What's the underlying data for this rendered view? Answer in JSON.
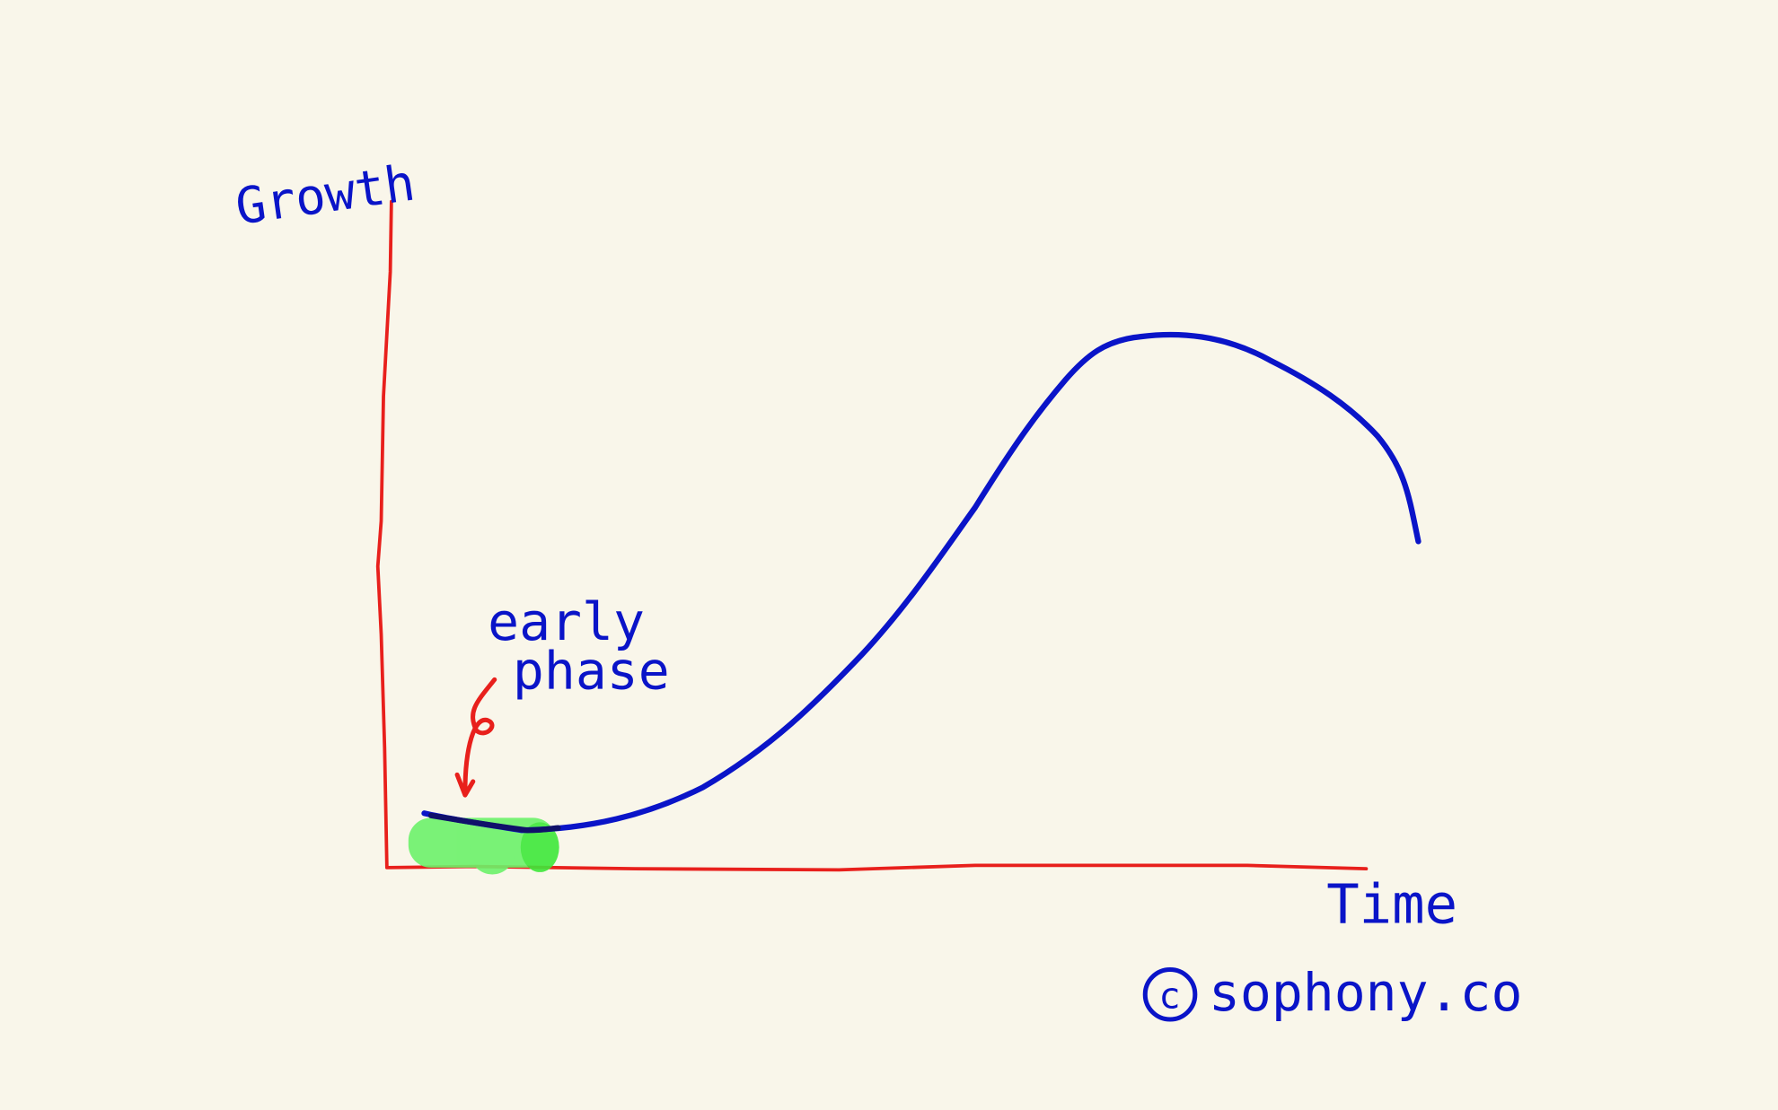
{
  "colors": {
    "background": "#f9f6ea",
    "axes": "#e8201c",
    "curve": "#0a14c8",
    "highlight": "#6cf26a",
    "annotation_arrow": "#e8201c"
  },
  "labels": {
    "y_axis": "Growth",
    "x_axis": "Time",
    "annotation_line1": "early",
    "annotation_line2": "phase",
    "copyright": "sophony.co",
    "copyright_symbol": "c"
  },
  "icons": {
    "copyright": "copyright-circle-icon",
    "arrow": "curved-arrow-down-icon"
  }
}
